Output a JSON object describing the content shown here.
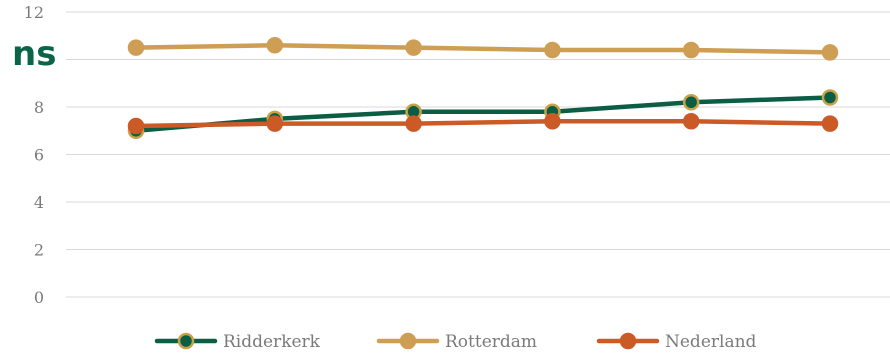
{
  "overlay_text": "ns",
  "chart_data": {
    "type": "line",
    "title": "",
    "xlabel": "",
    "ylabel": "",
    "categories": [
      "",
      "",
      "",
      "",
      "",
      ""
    ],
    "ylim": [
      0,
      12
    ],
    "yticks": [
      0,
      2,
      4,
      6,
      8,
      10,
      12
    ],
    "ytick_labels": [
      "0",
      "2",
      "4",
      "6",
      "8",
      "",
      "12"
    ],
    "grid": true,
    "legend_position": "bottom",
    "series": [
      {
        "name": "Ridderkerk",
        "values": [
          7.0,
          7.5,
          7.8,
          7.8,
          8.2,
          8.4
        ],
        "color": "#0b5e44",
        "marker_edge": "#c8a24a"
      },
      {
        "name": "Rotterdam",
        "values": [
          10.5,
          10.6,
          10.5,
          10.4,
          10.4,
          10.3
        ],
        "color": "#cf9e55",
        "marker_edge": "#cf9e55"
      },
      {
        "name": "Nederland",
        "values": [
          7.2,
          7.3,
          7.3,
          7.4,
          7.4,
          7.3
        ],
        "color": "#cc5a26",
        "marker_edge": "#cc5a26"
      }
    ]
  }
}
